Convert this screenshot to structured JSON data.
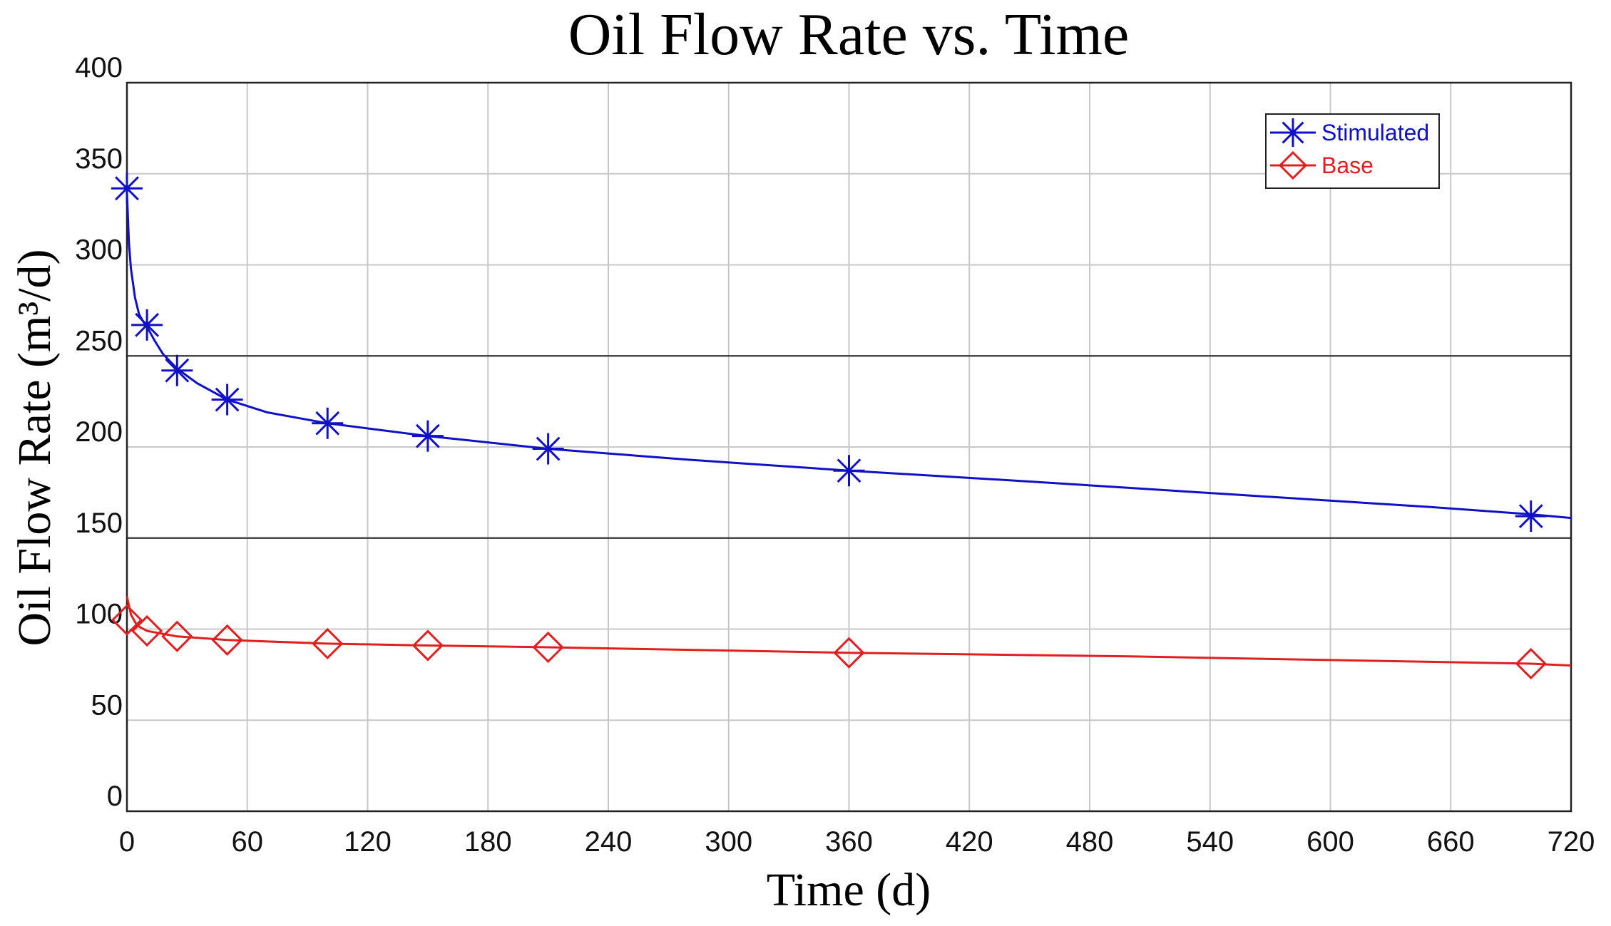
{
  "chart_data": {
    "type": "line",
    "title": "Oil Flow Rate vs. Time",
    "xlabel": "Time (d)",
    "ylabel": "Oil Flow Rate (m³/d)",
    "xlim": [
      0,
      720
    ],
    "ylim": [
      0,
      400
    ],
    "xticks": [
      0,
      60,
      120,
      180,
      240,
      300,
      360,
      420,
      480,
      540,
      600,
      660,
      720
    ],
    "yticks": [
      0,
      50,
      100,
      150,
      200,
      250,
      300,
      350,
      400
    ],
    "grid": true,
    "legend_position": "top-right",
    "series": [
      {
        "name": "Stimulated",
        "color": "#1010c8",
        "marker": "asterisk",
        "x": [
          0,
          10,
          25,
          50,
          100,
          150,
          210,
          360,
          700
        ],
        "y": [
          342,
          267,
          242,
          226,
          213,
          206,
          199,
          187,
          162
        ],
        "curve_x": [
          0,
          1,
          2,
          4,
          6,
          8,
          10,
          14,
          18,
          25,
          35,
          50,
          70,
          100,
          150,
          210,
          280,
          360,
          450,
          550,
          650,
          700,
          720
        ],
        "curve_y": [
          340,
          312,
          298,
          282,
          273,
          269,
          266,
          258,
          251,
          243,
          235,
          226,
          219,
          213,
          206,
          199,
          193,
          187,
          181,
          174,
          167,
          163,
          161
        ]
      },
      {
        "name": "Base",
        "color": "#e02020",
        "marker": "diamond",
        "x": [
          0,
          10,
          25,
          50,
          100,
          150,
          210,
          360,
          700
        ],
        "y": [
          105,
          99,
          96,
          94,
          92,
          91,
          90,
          87,
          81
        ],
        "curve_x": [
          0,
          2,
          5,
          10,
          25,
          50,
          100,
          150,
          210,
          360,
          500,
          600,
          700,
          720
        ],
        "curve_y": [
          118,
          108,
          102,
          99,
          96,
          94,
          92,
          91,
          90,
          87,
          85,
          83,
          81,
          80
        ]
      }
    ]
  }
}
